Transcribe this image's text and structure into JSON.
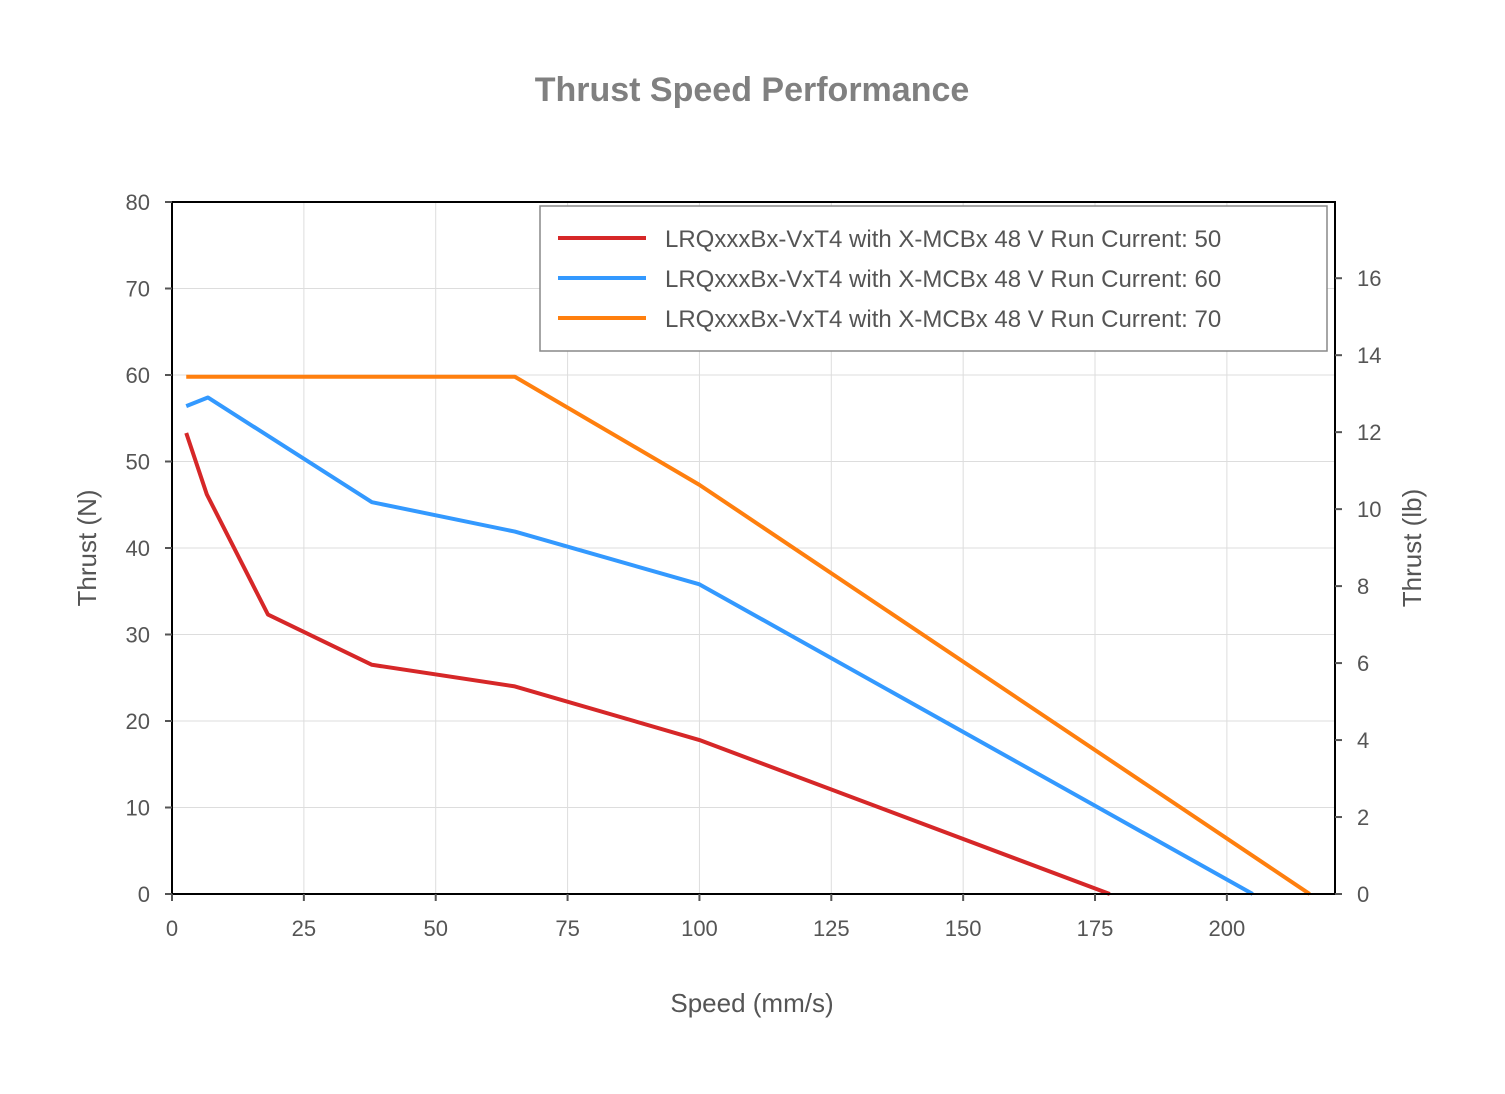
{
  "chart_data": {
    "type": "line",
    "title": "Thrust Speed Performance",
    "xlabel": "Speed (mm/s)",
    "ylabel": "Thrust (N)",
    "y2label": "Thrust (lb)",
    "xlim": [
      0,
      220.5
    ],
    "ylim": [
      0,
      80
    ],
    "y2lim": [
      0,
      17.98
    ],
    "xticks": [
      0,
      25,
      50,
      75,
      100,
      125,
      150,
      175,
      200
    ],
    "yticks": [
      0,
      10,
      20,
      30,
      40,
      50,
      60,
      70,
      80
    ],
    "y2ticks": [
      0,
      2,
      4,
      6,
      8,
      10,
      12,
      14,
      16
    ],
    "grid": true,
    "legend_position": "top-right",
    "series": [
      {
        "name": "LRQxxxBx-VxT4 with X-MCBx 48 V Run Current: 50",
        "color": "#d62728",
        "x": [
          2.7,
          6.6,
          18.2,
          37.9,
          65,
          100,
          177.8
        ],
        "y": [
          53.3,
          46.2,
          32.3,
          26.5,
          24.0,
          17.8,
          0
        ]
      },
      {
        "name": "LRQxxxBx-VxT4 with X-MCBx 48 V Run Current: 60",
        "color": "#3399ff",
        "x": [
          2.7,
          6.8,
          37.9,
          65,
          100,
          204.9
        ],
        "y": [
          56.4,
          57.4,
          45.3,
          41.9,
          35.8,
          0
        ]
      },
      {
        "name": "LRQxxxBx-VxT4 with X-MCBx 48 V Run Current: 70",
        "color": "#ff7f0e",
        "x": [
          2.7,
          65,
          100,
          215.7
        ],
        "y": [
          59.8,
          59.8,
          47.3,
          0
        ]
      }
    ]
  }
}
